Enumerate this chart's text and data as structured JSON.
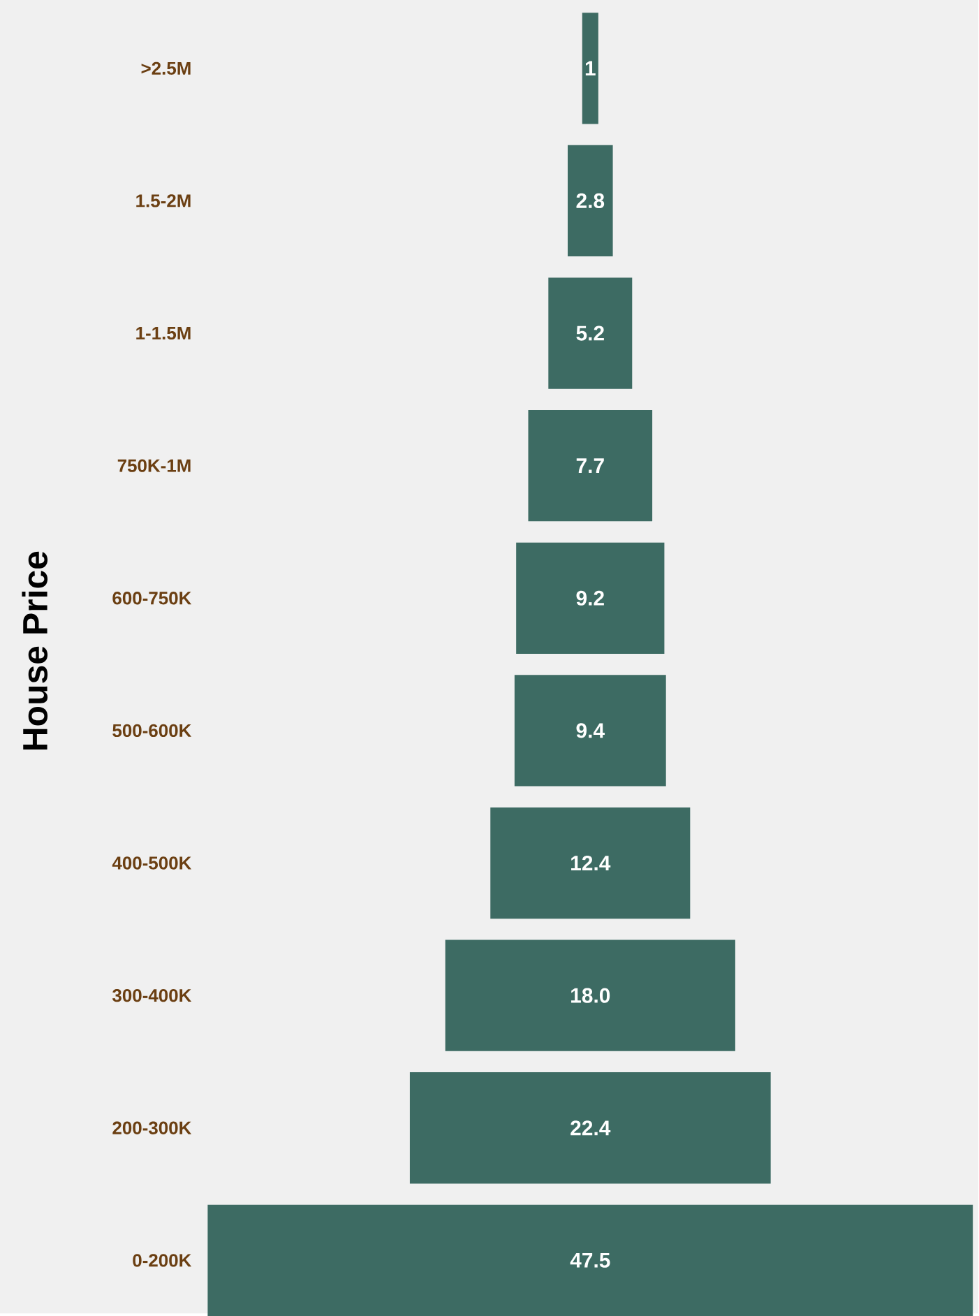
{
  "chart_data": {
    "type": "other",
    "ylabel": "House Price",
    "categories": [
      ">2.5M",
      "1.5-2M",
      "1-1.5M",
      "750K-1M",
      "600-750K",
      "500-600K",
      "400-500K",
      "300-400K",
      "200-300K",
      "0-200K"
    ],
    "values": [
      1,
      2.8,
      5.2,
      7.7,
      9.2,
      9.4,
      12.4,
      18.0,
      22.4,
      47.5
    ],
    "value_labels": [
      "1",
      "2.8",
      "5.2",
      "7.7",
      "9.2",
      "9.4",
      "12.4",
      "18.0",
      "22.4",
      "47.5"
    ],
    "color": "#3d6b63"
  }
}
